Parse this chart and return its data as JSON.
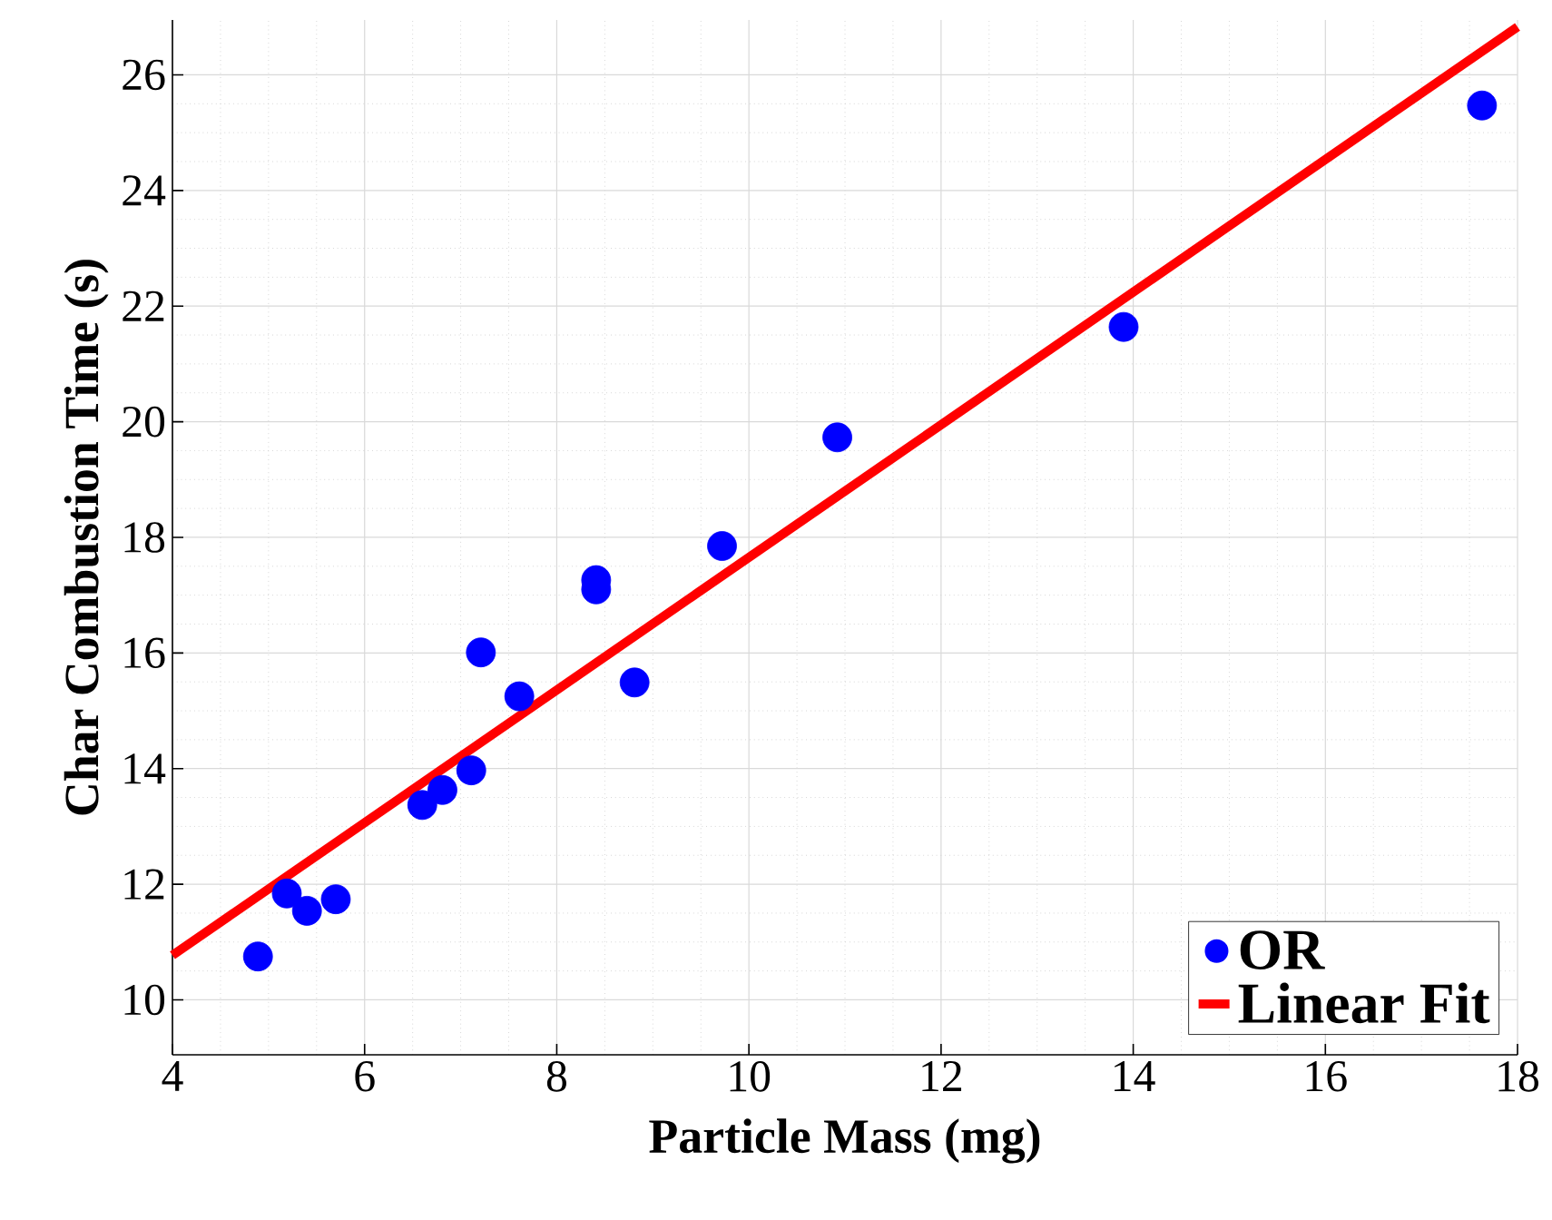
{
  "chart_data": {
    "type": "scatter",
    "xlabel": "Particle Mass (mg)",
    "ylabel": "Char Combustion Time (s)",
    "xlim": [
      4,
      18
    ],
    "ylim": [
      9.05,
      26.95
    ],
    "xticks": [
      4,
      6,
      8,
      10,
      12,
      14,
      16,
      18
    ],
    "yticks": [
      10,
      12,
      14,
      16,
      18,
      20,
      22,
      24,
      26
    ],
    "grid": true,
    "legend": "bottom right",
    "series": [
      {
        "name": "OR",
        "marker": "circle",
        "color": "#0000ff",
        "x": [
          4.89,
          5.19,
          5.4,
          5.7,
          6.6,
          6.81,
          7.11,
          7.21,
          7.61,
          8.41,
          8.41,
          8.81,
          9.72,
          10.92,
          13.9,
          17.63
        ],
        "values": [
          10.75,
          11.84,
          11.54,
          11.74,
          13.37,
          13.63,
          13.97,
          16.01,
          15.25,
          17.26,
          17.1,
          15.49,
          17.85,
          19.73,
          21.64,
          25.47
        ]
      },
      {
        "name": "Linear Fit",
        "type": "line",
        "color": "#ff0000",
        "x": [
          4,
          18
        ],
        "values": [
          10.77,
          26.83
        ]
      }
    ]
  }
}
